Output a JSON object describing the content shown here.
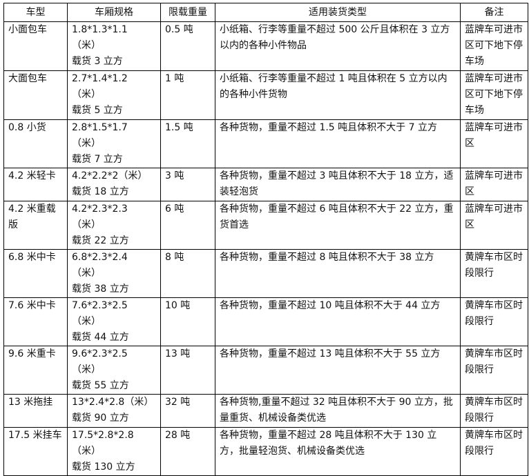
{
  "headers": [
    "车型",
    "车厢规格",
    "限载重量",
    "适用装货类型",
    "备注"
  ],
  "rows": [
    {
      "type": "小面包车",
      "spec": "1.8*1.3*1.1（米）",
      "volume": "载货 3 立方",
      "load": "0.5 吨",
      "cargo": "小纸箱、行李等重量不超过 500 公斤且体积在 3 立方以内的各种小件物品",
      "note": "蓝牌车可进市区可下地下停车场"
    },
    {
      "type": "大面包车",
      "spec": "2.7*1.4*1.2（米）",
      "volume": "载货 5 立方",
      "load": "1 吨",
      "cargo": "小纸箱、行李等重量不超过 1 吨且体积在 5 立方以内的各种小件货物",
      "note": "蓝牌车可进市区可下地下停车场"
    },
    {
      "type": "0.8 小货",
      "spec": "2.8*1.5*1.7（米）",
      "volume": "载货 7 立方",
      "load": "1.5 吨",
      "cargo": "各种货物，重量不超过 1.5 吨且体积不大于 7 立方",
      "note": "蓝牌车可进市区"
    },
    {
      "type": "4.2 米轻卡",
      "spec": "4.2*2.2*2（米）",
      "volume": "载货 18 立方",
      "load": "3 吨",
      "cargo": "各种货物，重量不超过 3 吨且体积不大于 18 立方，适装轻泡货",
      "note": "蓝牌车可进市区"
    },
    {
      "type": "4.2 米重载版",
      "spec": "4.2*2.3*2.3（米）",
      "volume": "载货 22 立方",
      "load": "6 吨",
      "cargo": "各种货物，重量不超过 6 吨且体积不大于 22 立方，重货首选",
      "note": "蓝牌车可进市区"
    },
    {
      "type": "6.8 米中卡",
      "spec": "6.8*2.3*2.4（米）",
      "volume": "载货 38 立方",
      "load": "8 吨",
      "cargo": "各种货物，重量不超过 8 吨且体积不大于 38 立方",
      "note": "黄牌车市区时段限行"
    },
    {
      "type": "7.6 米中卡",
      "spec": "7.6*2.3*2.5（米）",
      "volume": "载货 44 立方",
      "load": "10 吨",
      "cargo": "各种货物，重量不超过 10 吨且体积不大于 44 立方",
      "note": "黄牌车市区时段限行"
    },
    {
      "type": "9.6 米重卡",
      "spec": "9.6*2.3*2.5（米）",
      "volume": "载货 55 立方",
      "load": "13 吨",
      "cargo": "各种货物，重量不超过 13 吨且体积不大于 55 立方",
      "note": "黄牌车市区时段限行"
    },
    {
      "type": "13 米拖挂",
      "spec": "13*2.4*2.8（米）",
      "volume": "载货 90 立方",
      "load": "32 吨",
      "cargo": "各种货物,重量不超过 32 吨且体积不大于 90 立方，批量重货、机械设备类优选",
      "note": "黄牌车市区时段限行"
    },
    {
      "type": "17.5 米挂车",
      "spec": "17.5*2.8*2.8（米）",
      "volume": "载货 130 立方",
      "load": "28 吨",
      "cargo": "各种货物，重量不超过 28 吨且体积不大于 130 立方，批量轻泡货、机械设备类优选",
      "note": "黄牌车市区时段限行"
    }
  ]
}
